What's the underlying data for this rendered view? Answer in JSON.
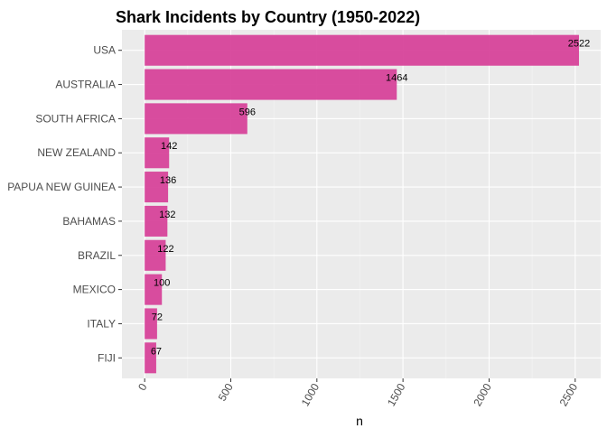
{
  "chart_data": {
    "type": "bar",
    "orientation": "horizontal",
    "title": "Shark Incidents by Country (1950-2022)",
    "xlabel": "n",
    "ylabel": "",
    "categories": [
      "USA",
      "AUSTRALIA",
      "SOUTH AFRICA",
      "NEW ZEALAND",
      "PAPUA NEW GUINEA",
      "BAHAMAS",
      "BRAZIL",
      "MEXICO",
      "ITALY",
      "FIJI"
    ],
    "values": [
      2522,
      1464,
      596,
      142,
      136,
      132,
      122,
      100,
      72,
      67
    ],
    "xlim": [
      -132,
      2648
    ],
    "xticks": [
      0,
      500,
      1000,
      1500,
      2000,
      2500
    ],
    "xtick_labels": [
      "0",
      "500",
      "1000",
      "1500",
      "2000",
      "2500"
    ],
    "grid": true,
    "legend": "none",
    "colors": {
      "bar": "#D7439A",
      "panel": "#EBEBEB",
      "grid_major": "#FFFFFF",
      "grid_minor": "#F5F5F5",
      "tick_text": "#4D4D4D",
      "title": "#000000"
    }
  }
}
